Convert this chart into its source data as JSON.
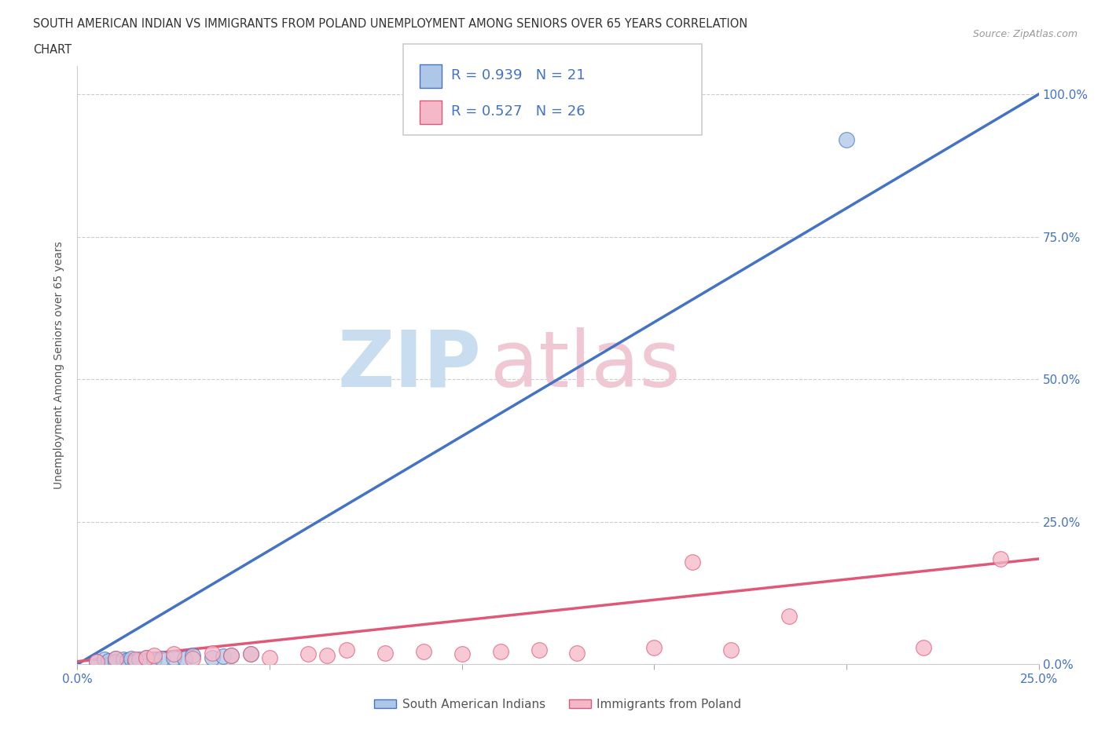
{
  "title_line1": "SOUTH AMERICAN INDIAN VS IMMIGRANTS FROM POLAND UNEMPLOYMENT AMONG SENIORS OVER 65 YEARS CORRELATION",
  "title_line2": "CHART",
  "source": "Source: ZipAtlas.com",
  "ylabel": "Unemployment Among Seniors over 65 years",
  "series1_name": "South American Indians",
  "series1_color": "#aec6e8",
  "series1_line_color": "#4472c4",
  "series1_R": 0.939,
  "series1_N": 21,
  "series2_name": "Immigrants from Poland",
  "series2_color": "#f4b8c8",
  "series2_line_color": "#e05878",
  "series2_R": 0.527,
  "series2_N": 26,
  "xlim": [
    0.0,
    0.25
  ],
  "ylim": [
    0.0,
    1.05
  ],
  "background_color": "#ffffff",
  "series1_x": [
    0.005,
    0.007,
    0.008,
    0.01,
    0.01,
    0.012,
    0.013,
    0.014,
    0.015,
    0.016,
    0.018,
    0.02,
    0.022,
    0.025,
    0.028,
    0.03,
    0.035,
    0.038,
    0.04,
    0.045,
    0.2
  ],
  "series1_y": [
    0.005,
    0.008,
    0.006,
    0.01,
    0.005,
    0.008,
    0.007,
    0.01,
    0.005,
    0.008,
    0.012,
    0.008,
    0.01,
    0.012,
    0.01,
    0.015,
    0.012,
    0.014,
    0.015,
    0.018,
    0.92
  ],
  "series2_x": [
    0.005,
    0.01,
    0.015,
    0.018,
    0.02,
    0.025,
    0.03,
    0.035,
    0.04,
    0.045,
    0.05,
    0.06,
    0.065,
    0.07,
    0.08,
    0.09,
    0.1,
    0.11,
    0.12,
    0.13,
    0.15,
    0.16,
    0.17,
    0.185,
    0.22,
    0.24
  ],
  "series2_y": [
    0.005,
    0.01,
    0.008,
    0.012,
    0.015,
    0.018,
    0.01,
    0.02,
    0.015,
    0.018,
    0.012,
    0.018,
    0.015,
    0.025,
    0.02,
    0.022,
    0.018,
    0.022,
    0.025,
    0.02,
    0.03,
    0.18,
    0.025,
    0.085,
    0.03,
    0.185
  ],
  "trend1_x": [
    0.0,
    0.25
  ],
  "trend1_y": [
    0.0,
    1.0
  ],
  "trend2_x": [
    0.0,
    0.25
  ],
  "trend2_y": [
    0.005,
    0.185
  ]
}
